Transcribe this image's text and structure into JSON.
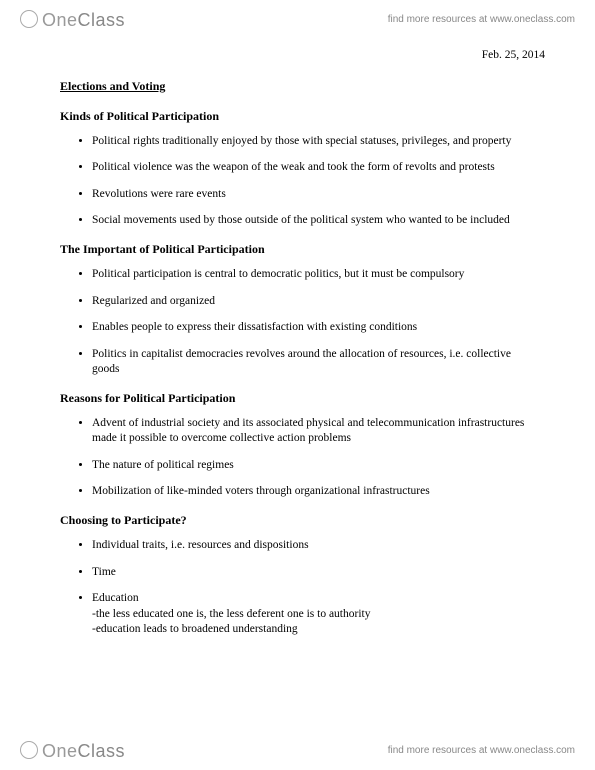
{
  "brand": {
    "part1": "One",
    "part2": "Class",
    "tagline": "find more resources at www.oneclass.com"
  },
  "date": "Feb. 25, 2014",
  "title": "Elections and Voting",
  "sections": [
    {
      "heading": "Kinds of Political Participation",
      "items": [
        {
          "text": "Political rights traditionally enjoyed by those with special statuses, privileges, and property"
        },
        {
          "text": "Political violence was the weapon of the weak and took the form of revolts and protests"
        },
        {
          "text": "Revolutions were rare events"
        },
        {
          "text": "Social movements used by those outside of the political system who wanted to be included"
        }
      ]
    },
    {
      "heading": "The Important of Political Participation",
      "items": [
        {
          "text": "Political participation is central to democratic politics, but it must be compulsory"
        },
        {
          "text": "Regularized and organized"
        },
        {
          "text": "Enables people to express their dissatisfaction with existing conditions"
        },
        {
          "text": "Politics in capitalist democracies revolves around the allocation of resources, i.e. collective goods"
        }
      ]
    },
    {
      "heading": "Reasons for Political Participation",
      "items": [
        {
          "text": "Advent of industrial society and its associated physical and telecommunication infrastructures made it possible to overcome collective action problems"
        },
        {
          "text": "The nature of political regimes"
        },
        {
          "text": "Mobilization of like-minded voters through organizational infrastructures"
        }
      ]
    },
    {
      "heading": "Choosing to Participate?",
      "items": [
        {
          "text": "Individual traits, i.e. resources and dispositions"
        },
        {
          "text": "Time"
        },
        {
          "text": "Education",
          "sublines": [
            "-the less educated one is, the less deferent one is to authority",
            "-education leads to broadened understanding"
          ]
        }
      ]
    }
  ],
  "colors": {
    "text": "#000000",
    "brand_light": "#999999",
    "brand_dark": "#888888",
    "background": "#ffffff"
  },
  "typography": {
    "body_family": "Times New Roman",
    "body_size_pt": 11.5,
    "heading_size_pt": 12,
    "brand_family": "Arial",
    "brand_size_pt": 18,
    "tagline_size_pt": 10
  }
}
